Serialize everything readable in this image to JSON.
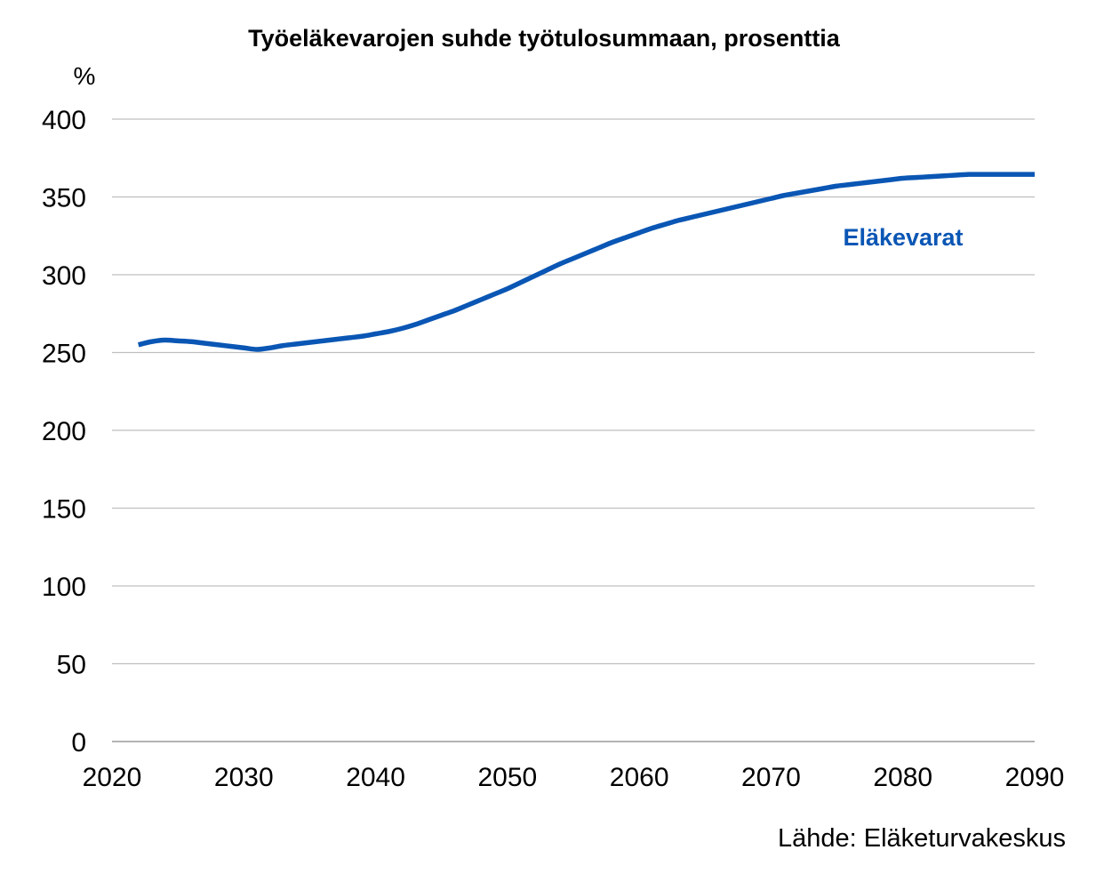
{
  "chart_data": {
    "type": "line",
    "title": "Työeläkevarojen suhde työtulosummaan, prosenttia",
    "ylabel": "%",
    "xlabel": "",
    "xlim": [
      2020,
      2090
    ],
    "ylim": [
      0,
      400
    ],
    "x_ticks": [
      "2020",
      "2030",
      "2040",
      "2050",
      "2060",
      "2070",
      "2080",
      "2090"
    ],
    "y_ticks": [
      "0",
      "50",
      "100",
      "150",
      "200",
      "250",
      "300",
      "350",
      "400"
    ],
    "grid": true,
    "series": [
      {
        "name": "Eläkevarat",
        "color": "#0a56b4",
        "x": [
          2022,
          2023,
          2024,
          2025,
          2026,
          2027,
          2028,
          2029,
          2030,
          2031,
          2032,
          2033,
          2034,
          2035,
          2036,
          2037,
          2038,
          2039,
          2040,
          2041,
          2042,
          2043,
          2044,
          2045,
          2046,
          2047,
          2048,
          2049,
          2050,
          2051,
          2052,
          2053,
          2054,
          2055,
          2056,
          2057,
          2058,
          2059,
          2060,
          2061,
          2062,
          2063,
          2064,
          2065,
          2066,
          2067,
          2068,
          2069,
          2070,
          2071,
          2072,
          2073,
          2074,
          2075,
          2076,
          2077,
          2078,
          2079,
          2080,
          2081,
          2082,
          2083,
          2084,
          2085,
          2086,
          2087,
          2088,
          2089,
          2090
        ],
        "values": [
          255,
          257,
          258,
          257.5,
          257,
          256,
          255,
          254,
          253,
          252,
          253,
          254.5,
          255.5,
          256.5,
          257.5,
          258.5,
          259.5,
          260.5,
          262,
          263.5,
          265.5,
          268,
          271,
          274,
          277,
          280.5,
          284,
          287.5,
          291,
          295,
          299,
          303,
          307,
          310.5,
          314,
          317.5,
          321,
          324,
          327,
          330,
          332.5,
          335,
          337,
          339,
          341,
          343,
          345,
          347,
          349,
          351,
          352.5,
          354,
          355.5,
          357,
          358,
          359,
          360,
          361,
          362,
          362.5,
          363,
          363.5,
          364,
          364.5,
          364.5,
          364.5,
          364.5,
          364.5,
          364.5
        ]
      }
    ]
  },
  "series_label": "Eläkevarat",
  "source": "Lähde: Eläketurvakeskus"
}
